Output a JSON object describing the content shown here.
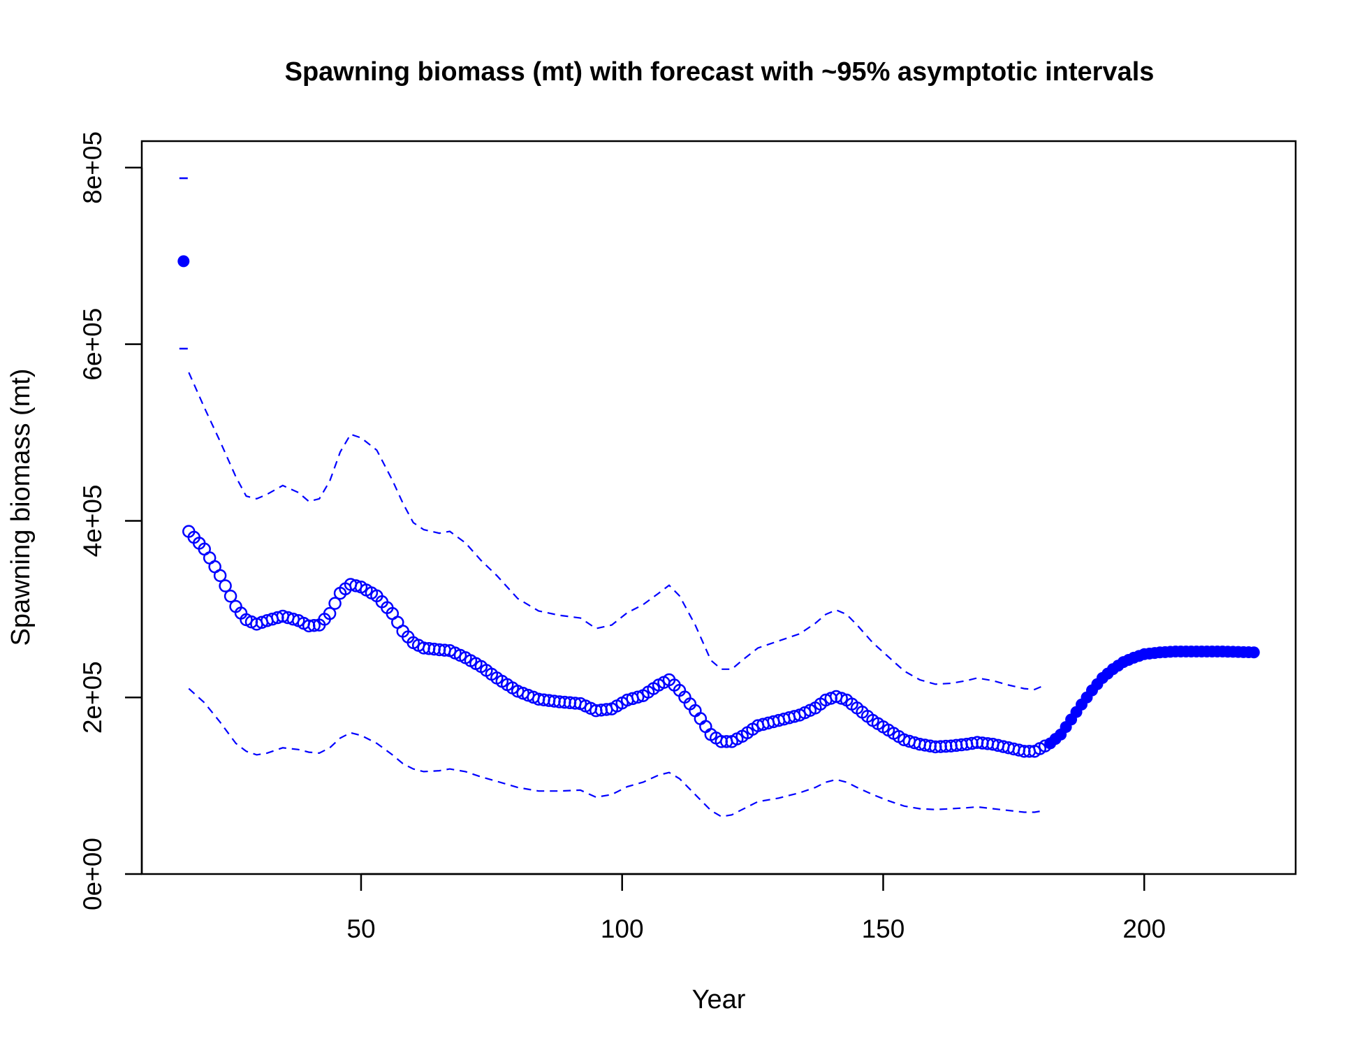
{
  "chart_data": {
    "type": "scatter",
    "title": "Spawning biomass (mt) with forecast with ~95% asymptotic intervals",
    "xlabel": "Year",
    "ylabel": "Spawning biomass (mt)",
    "xlim": [
      8,
      229
    ],
    "ylim": [
      0,
      830000
    ],
    "x_ticks": [
      50,
      100,
      150,
      200
    ],
    "x_tick_labels": [
      "50",
      "100",
      "150",
      "200"
    ],
    "y_ticks": [
      0,
      200000,
      400000,
      600000,
      800000
    ],
    "y_tick_labels": [
      "0e+00",
      "2e+05",
      "4e+05",
      "6e+05",
      "8e+05"
    ],
    "grid": false,
    "color": "#0000FF",
    "virgin": {
      "year": 16,
      "value": 694000,
      "upper": 788000,
      "lower": 595000
    },
    "estimate_knots": [
      [
        17,
        388000
      ],
      [
        20,
        368000
      ],
      [
        23,
        338000
      ],
      [
        26,
        303000
      ],
      [
        28,
        288000
      ],
      [
        30,
        283000
      ],
      [
        32,
        287000
      ],
      [
        35,
        292000
      ],
      [
        38,
        287000
      ],
      [
        40,
        281000
      ],
      [
        42,
        282000
      ],
      [
        44,
        295000
      ],
      [
        46,
        318000
      ],
      [
        48,
        328000
      ],
      [
        50,
        325000
      ],
      [
        53,
        315000
      ],
      [
        56,
        295000
      ],
      [
        58,
        275000
      ],
      [
        60,
        262000
      ],
      [
        62,
        256000
      ],
      [
        65,
        254000
      ],
      [
        67,
        253000
      ],
      [
        70,
        245000
      ],
      [
        73,
        235000
      ],
      [
        76,
        222000
      ],
      [
        80,
        207000
      ],
      [
        84,
        198000
      ],
      [
        88,
        195000
      ],
      [
        92,
        193000
      ],
      [
        95,
        185000
      ],
      [
        98,
        187000
      ],
      [
        101,
        197000
      ],
      [
        104,
        202000
      ],
      [
        107,
        214000
      ],
      [
        109,
        220000
      ],
      [
        111,
        208000
      ],
      [
        114,
        185000
      ],
      [
        117,
        158000
      ],
      [
        119,
        150000
      ],
      [
        121,
        150000
      ],
      [
        123,
        156000
      ],
      [
        126,
        168000
      ],
      [
        130,
        174000
      ],
      [
        134,
        180000
      ],
      [
        137,
        188000
      ],
      [
        139,
        197000
      ],
      [
        141,
        201000
      ],
      [
        143,
        197000
      ],
      [
        145,
        188000
      ],
      [
        148,
        174000
      ],
      [
        151,
        163000
      ],
      [
        154,
        152000
      ],
      [
        157,
        147000
      ],
      [
        160,
        144000
      ],
      [
        163,
        145000
      ],
      [
        166,
        147000
      ],
      [
        168,
        149000
      ],
      [
        171,
        147000
      ],
      [
        174,
        143000
      ],
      [
        177,
        139000
      ],
      [
        179,
        139000
      ],
      [
        181,
        145000
      ]
    ],
    "forecast_knots": [
      [
        182,
        148000
      ],
      [
        184,
        158000
      ],
      [
        186,
        175000
      ],
      [
        188,
        192000
      ],
      [
        190,
        208000
      ],
      [
        192,
        222000
      ],
      [
        194,
        232000
      ],
      [
        196,
        240000
      ],
      [
        198,
        245000
      ],
      [
        200,
        249000
      ],
      [
        203,
        251000
      ],
      [
        206,
        252000
      ],
      [
        210,
        252000
      ],
      [
        215,
        252000
      ],
      [
        221,
        251000
      ]
    ],
    "upper_ci_knots": [
      [
        17,
        568000
      ],
      [
        20,
        528000
      ],
      [
        23,
        490000
      ],
      [
        26,
        450000
      ],
      [
        28,
        428000
      ],
      [
        30,
        425000
      ],
      [
        32,
        430000
      ],
      [
        35,
        440000
      ],
      [
        38,
        432000
      ],
      [
        40,
        422000
      ],
      [
        42,
        425000
      ],
      [
        44,
        445000
      ],
      [
        46,
        478000
      ],
      [
        48,
        498000
      ],
      [
        50,
        494000
      ],
      [
        53,
        480000
      ],
      [
        56,
        446000
      ],
      [
        58,
        420000
      ],
      [
        60,
        398000
      ],
      [
        62,
        390000
      ],
      [
        65,
        386000
      ],
      [
        67,
        388000
      ],
      [
        70,
        375000
      ],
      [
        73,
        355000
      ],
      [
        76,
        338000
      ],
      [
        80,
        312000
      ],
      [
        84,
        298000
      ],
      [
        88,
        293000
      ],
      [
        92,
        290000
      ],
      [
        95,
        278000
      ],
      [
        98,
        282000
      ],
      [
        101,
        296000
      ],
      [
        104,
        305000
      ],
      [
        107,
        318000
      ],
      [
        109,
        327000
      ],
      [
        111,
        315000
      ],
      [
        114,
        282000
      ],
      [
        117,
        242000
      ],
      [
        119,
        232000
      ],
      [
        121,
        232000
      ],
      [
        123,
        242000
      ],
      [
        126,
        256000
      ],
      [
        130,
        264000
      ],
      [
        134,
        272000
      ],
      [
        137,
        284000
      ],
      [
        139,
        294000
      ],
      [
        141,
        299000
      ],
      [
        143,
        294000
      ],
      [
        145,
        282000
      ],
      [
        148,
        262000
      ],
      [
        151,
        246000
      ],
      [
        154,
        230000
      ],
      [
        157,
        220000
      ],
      [
        160,
        215000
      ],
      [
        163,
        216000
      ],
      [
        166,
        219000
      ],
      [
        168,
        222000
      ],
      [
        171,
        219000
      ],
      [
        174,
        214000
      ],
      [
        177,
        210000
      ],
      [
        179,
        209000
      ],
      [
        181,
        214000
      ]
    ],
    "lower_ci_knots": [
      [
        17,
        210000
      ],
      [
        20,
        194000
      ],
      [
        23,
        172000
      ],
      [
        26,
        148000
      ],
      [
        28,
        139000
      ],
      [
        30,
        135000
      ],
      [
        32,
        137000
      ],
      [
        35,
        143000
      ],
      [
        38,
        141000
      ],
      [
        40,
        138000
      ],
      [
        42,
        137000
      ],
      [
        44,
        143000
      ],
      [
        46,
        154000
      ],
      [
        48,
        160000
      ],
      [
        50,
        157000
      ],
      [
        53,
        148000
      ],
      [
        56,
        135000
      ],
      [
        58,
        125000
      ],
      [
        60,
        119000
      ],
      [
        62,
        116000
      ],
      [
        65,
        117000
      ],
      [
        67,
        119000
      ],
      [
        70,
        116000
      ],
      [
        73,
        110000
      ],
      [
        76,
        105000
      ],
      [
        80,
        98000
      ],
      [
        84,
        94000
      ],
      [
        88,
        94000
      ],
      [
        92,
        95000
      ],
      [
        95,
        87000
      ],
      [
        98,
        90000
      ],
      [
        101,
        99000
      ],
      [
        104,
        104000
      ],
      [
        107,
        112000
      ],
      [
        109,
        115000
      ],
      [
        111,
        108000
      ],
      [
        114,
        90000
      ],
      [
        117,
        72000
      ],
      [
        119,
        65000
      ],
      [
        121,
        67000
      ],
      [
        123,
        73000
      ],
      [
        126,
        82000
      ],
      [
        130,
        86000
      ],
      [
        134,
        92000
      ],
      [
        137,
        98000
      ],
      [
        139,
        104000
      ],
      [
        141,
        107000
      ],
      [
        143,
        104000
      ],
      [
        145,
        98000
      ],
      [
        148,
        90000
      ],
      [
        151,
        83000
      ],
      [
        154,
        77000
      ],
      [
        157,
        74000
      ],
      [
        160,
        73000
      ],
      [
        163,
        74000
      ],
      [
        166,
        75000
      ],
      [
        168,
        76000
      ],
      [
        171,
        74000
      ],
      [
        174,
        72000
      ],
      [
        177,
        70000
      ],
      [
        179,
        70000
      ],
      [
        181,
        72000
      ]
    ]
  }
}
